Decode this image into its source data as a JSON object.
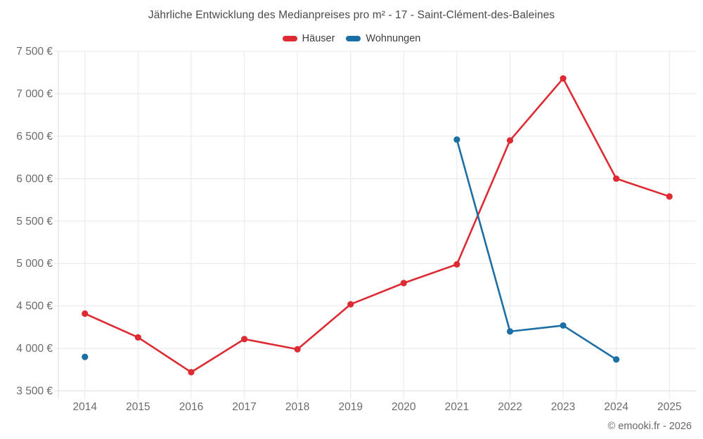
{
  "page": {
    "footer": "© emooki.fr - 2026"
  },
  "legend": {
    "items": [
      {
        "label": "Häuser",
        "color": "#de2b33"
      },
      {
        "label": "Wohnungen",
        "color": "#1c6fa5"
      }
    ]
  },
  "chart_data": {
    "type": "line",
    "title": "Jährliche Entwicklung des Medianpreises pro m² - 17 - Saint-Clément-des-Baleines",
    "categories": [
      "2014",
      "2015",
      "2016",
      "2017",
      "2018",
      "2019",
      "2020",
      "2021",
      "2022",
      "2023",
      "2024",
      "2025"
    ],
    "series": [
      {
        "name": "Häuser",
        "color": "#de2b33",
        "values": [
          4410,
          4130,
          3720,
          4110,
          3990,
          4520,
          4770,
          4990,
          6450,
          7180,
          6000,
          5790
        ]
      },
      {
        "name": "Wohnungen",
        "color": "#1c6fa5",
        "values": [
          3900,
          null,
          null,
          null,
          null,
          null,
          null,
          6460,
          4200,
          4270,
          3870,
          null
        ]
      }
    ],
    "xlabel": "",
    "ylabel": "",
    "ylim": [
      3500,
      7500
    ],
    "y_tick_step": 500,
    "y_tick_labels": [
      "3 500 €",
      "4 000 €",
      "4 500 €",
      "5 000 €",
      "5 500 €",
      "6 000 €",
      "6 500 €",
      "7 000 €",
      "7 500 €"
    ],
    "unit": "€",
    "grid": true,
    "legend_position": "top"
  },
  "colors": {
    "grid": "#ececeb",
    "axis": "#e2e2e2",
    "title": "#4a4a4a",
    "tick_label": "#6b6b6b",
    "footer": "#666666",
    "background": "#ffffff"
  }
}
